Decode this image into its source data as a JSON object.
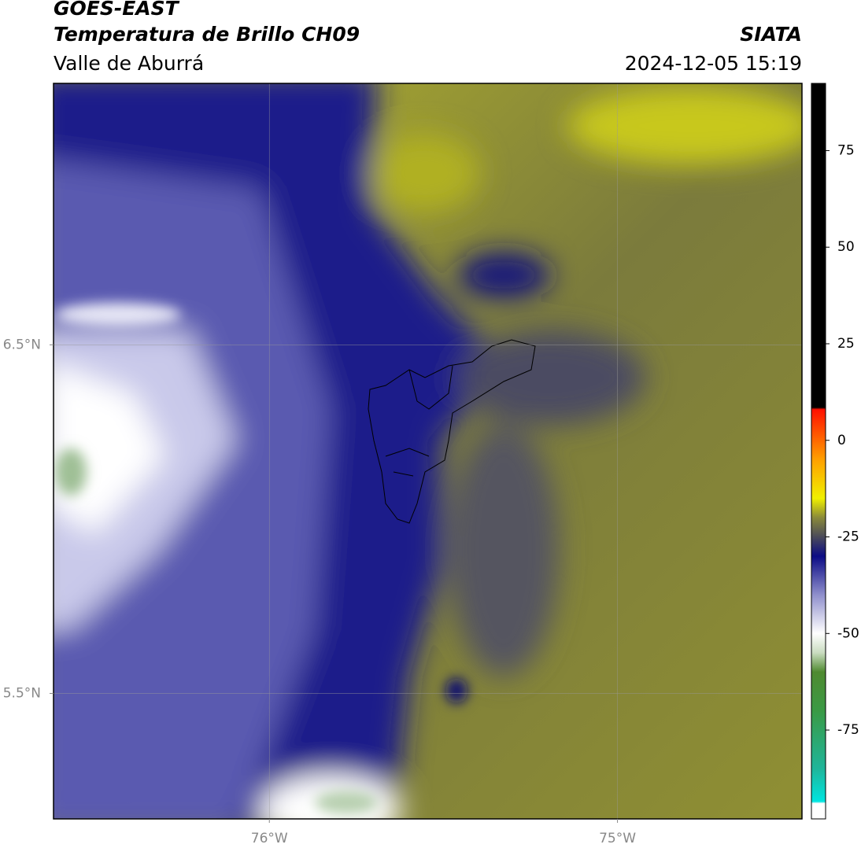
{
  "header": {
    "title": "GOES-EAST",
    "subtitle": "Temperatura de Brillo CH09",
    "region": "Valle de Aburrá",
    "source": "SIATA",
    "datetime": "2024-12-05 15:19"
  },
  "map": {
    "xlim": [
      -76.62,
      -74.47
    ],
    "ylim": [
      5.14,
      7.25
    ],
    "xticks": [
      {
        "value": -76,
        "label": "76°W"
      },
      {
        "value": -75,
        "label": "75°W"
      }
    ],
    "yticks": [
      {
        "value": 6.5,
        "label": "6.5°N"
      },
      {
        "value": 5.5,
        "label": "5.5°N"
      }
    ],
    "grid": true
  },
  "colorbar": {
    "lim": [
      -98,
      92.4
    ],
    "ticks": [
      75,
      50,
      25,
      0,
      -25,
      -50,
      -75
    ],
    "colors": [
      {
        "value": -98,
        "color": "#ffffff"
      },
      {
        "value": -94,
        "color": "#ffffff"
      },
      {
        "value": -93.5,
        "color": "#00e5e0"
      },
      {
        "value": -85,
        "color": "#1fb59a"
      },
      {
        "value": -70,
        "color": "#3a9a45"
      },
      {
        "value": -60,
        "color": "#4f8a30"
      },
      {
        "value": -55,
        "color": "#c9dcc0"
      },
      {
        "value": -50,
        "color": "#ffffff"
      },
      {
        "value": -40,
        "color": "#8f8fcc"
      },
      {
        "value": -30,
        "color": "#0b0b85"
      },
      {
        "value": -25,
        "color": "#4a4a5a"
      },
      {
        "value": -20,
        "color": "#8a8a3a"
      },
      {
        "value": -15,
        "color": "#f0f000"
      },
      {
        "value": -5,
        "color": "#ffa000"
      },
      {
        "value": 8,
        "color": "#ff1000"
      },
      {
        "value": 8.5,
        "color": "#000000"
      },
      {
        "value": 92.4,
        "color": "#000000"
      }
    ]
  }
}
